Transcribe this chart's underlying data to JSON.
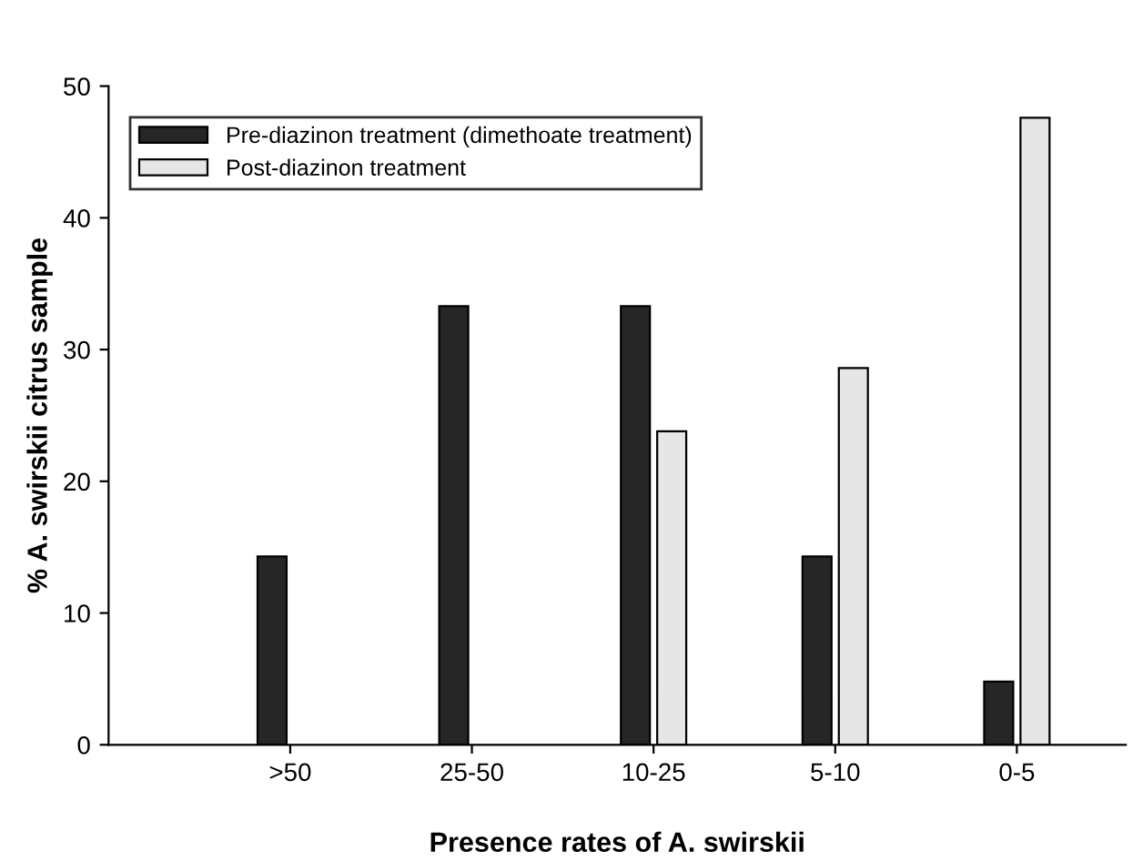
{
  "chart_data": {
    "type": "bar",
    "xlabel": "Presence rates of A. swirskii",
    "ylabel": "% A. swirskii citrus sample",
    "categories": [
      ">50",
      "25-50",
      "10-25",
      "5-10",
      "0-5"
    ],
    "series": [
      {
        "name": "Pre-diazinon treatment (dimethoate treatment)",
        "color": "#262626",
        "values": [
          14.3,
          33.3,
          33.3,
          14.3,
          4.8
        ]
      },
      {
        "name": "Post-diazinon treatment",
        "color": "#e6e6e6",
        "values": [
          null,
          null,
          23.8,
          28.6,
          47.6
        ]
      }
    ],
    "ylim": [
      0,
      50
    ],
    "yticks": [
      0,
      10,
      20,
      30,
      40,
      50
    ],
    "grid": false,
    "legend": "top left"
  }
}
